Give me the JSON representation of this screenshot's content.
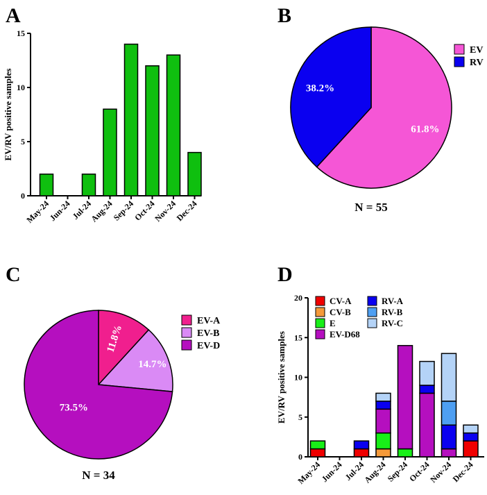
{
  "panels": {
    "a": "A",
    "b": "B",
    "c": "C",
    "d": "D"
  },
  "chart_data": [
    {
      "type": "bar",
      "panel": "A",
      "categories": [
        "May-24",
        "Jun-24",
        "Jul-24",
        "Aug-24",
        "Sep-24",
        "Oct-24",
        "Nov-24",
        "Dec-24"
      ],
      "values": [
        2,
        0,
        2,
        8,
        14,
        12,
        13,
        4
      ],
      "ylabel": "EV/RV positive samples",
      "ylim": [
        0,
        15
      ],
      "yticks": [
        "0",
        "5",
        "10",
        "15"
      ],
      "color": "#0fbf0f"
    },
    {
      "type": "pie",
      "panel": "B",
      "labels": [
        "EV",
        "RV"
      ],
      "values": [
        61.8,
        38.2
      ],
      "pct_labels": [
        "61.8%",
        "38.2%"
      ],
      "colors": [
        "#f556d6",
        "#0a00f0"
      ],
      "legend_position": "top-right",
      "n_label": "N = 55"
    },
    {
      "type": "pie",
      "panel": "C",
      "labels": [
        "EV-A",
        "EV-B",
        "EV-D"
      ],
      "values": [
        11.8,
        14.7,
        73.5
      ],
      "pct_labels": [
        "11.8%",
        "14.7%",
        "73.5%"
      ],
      "colors": [
        "#f01f8e",
        "#da8af5",
        "#b50fbf"
      ],
      "legend_position": "top-right",
      "n_label": "N = 34"
    },
    {
      "type": "bar",
      "stacked": true,
      "panel": "D",
      "categories": [
        "May-24",
        "Jun-24",
        "Jul-24",
        "Aug-24",
        "Sep-24",
        "Oct-24",
        "Nov-24",
        "Dec-24"
      ],
      "ylabel": "EV/RV positive samples",
      "ylim": [
        0,
        20
      ],
      "yticks": [
        "0",
        "5",
        "10",
        "15",
        "20"
      ],
      "series": [
        {
          "name": "CV-A",
          "color": "#f00000",
          "values": [
            1,
            0,
            1,
            0,
            0,
            0,
            0,
            2
          ]
        },
        {
          "name": "CV-B",
          "color": "#f59a3a",
          "values": [
            0,
            0,
            0,
            1,
            0,
            0,
            0,
            0
          ]
        },
        {
          "name": "E",
          "color": "#18ef18",
          "values": [
            1,
            0,
            0,
            2,
            1,
            0,
            0,
            0
          ]
        },
        {
          "name": "EV-D68",
          "color": "#b50fbf",
          "values": [
            0,
            0,
            0,
            3,
            13,
            8,
            1,
            0
          ]
        },
        {
          "name": "RV-A",
          "color": "#0a00f0",
          "values": [
            0,
            0,
            1,
            1,
            0,
            1,
            3,
            1
          ]
        },
        {
          "name": "RV-B",
          "color": "#4e9ff2",
          "values": [
            0,
            0,
            0,
            0,
            0,
            0,
            3,
            0
          ]
        },
        {
          "name": "RV-C",
          "color": "#b4d3f7",
          "values": [
            0,
            0,
            0,
            1,
            0,
            3,
            6,
            1
          ]
        }
      ]
    }
  ]
}
